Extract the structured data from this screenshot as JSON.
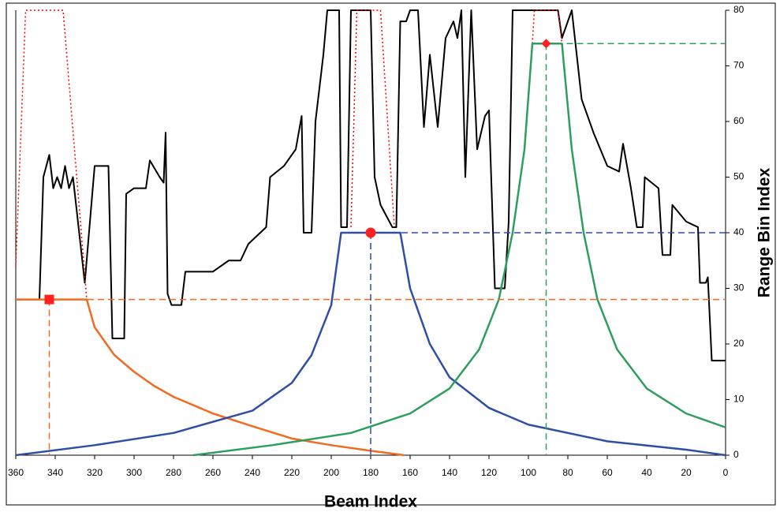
{
  "chart_data": {
    "type": "line",
    "xlabel": "Beam Index",
    "ylabel": "Range Bin Index",
    "xlim": [
      360,
      0
    ],
    "xticks": [
      360,
      340,
      320,
      300,
      280,
      260,
      240,
      220,
      200,
      180,
      160,
      140,
      120,
      100,
      80,
      60,
      40,
      20,
      0
    ],
    "ylim": [
      0,
      80
    ],
    "yticks": [
      0,
      10,
      20,
      30,
      40,
      50,
      60,
      70,
      80
    ],
    "series": [
      {
        "color": "#000000",
        "line": "solid",
        "width": 2,
        "x": [
          360,
          348,
          346,
          343,
          341,
          339,
          337,
          335,
          333,
          331,
          325,
          320,
          313,
          311,
          305,
          304,
          300,
          294,
          292,
          287,
          285,
          284,
          283,
          281,
          276,
          274,
          260,
          252,
          246,
          242,
          236,
          233,
          231,
          224,
          218,
          215,
          214,
          210,
          208,
          206,
          204,
          202,
          196,
          195,
          192,
          190,
          180,
          178,
          175,
          172,
          169,
          167,
          165,
          162,
          160,
          156,
          153,
          150,
          146,
          142,
          138,
          136,
          134,
          132,
          129,
          126,
          122,
          120,
          117,
          112,
          110,
          108,
          85,
          83,
          78,
          73,
          67,
          60,
          54,
          52,
          48,
          45,
          42,
          41,
          34,
          32,
          28,
          27,
          20,
          14,
          13,
          10,
          9,
          7,
          0
        ],
        "values": [
          28,
          28,
          50,
          54,
          48,
          50,
          48,
          52,
          48,
          50,
          31,
          52,
          52,
          21,
          21,
          47,
          48,
          48,
          53,
          50,
          49,
          58,
          29,
          27,
          27,
          33,
          33,
          35,
          35,
          38,
          40,
          41,
          50,
          52,
          55,
          61,
          40,
          40,
          60,
          66,
          72,
          80,
          80,
          41,
          41,
          80,
          80,
          50,
          45,
          43,
          41,
          41,
          78,
          78,
          80,
          80,
          59,
          72,
          59,
          75,
          78,
          75,
          80,
          50,
          80,
          55,
          61,
          62,
          30,
          30,
          42,
          80,
          80,
          75,
          80,
          64,
          58,
          52,
          51,
          56,
          48,
          41,
          41,
          50,
          48,
          36,
          36,
          45,
          42,
          41,
          31,
          31,
          32,
          17,
          17
        ]
      },
      {
        "color": "#ff0000",
        "line": "dotted",
        "width": 1.5,
        "x": [
          360,
          355,
          336,
          324
        ],
        "values": [
          34,
          80,
          80,
          28
        ]
      },
      {
        "color": "#ff0000",
        "line": "dotted",
        "width": 1.5,
        "x": [
          190,
          187,
          175,
          168
        ],
        "values": [
          41,
          80,
          80,
          41
        ]
      },
      {
        "color": "#ff0000",
        "line": "dotted",
        "width": 1.5,
        "x": [
          98,
          97,
          85,
          83
        ],
        "values": [
          74,
          80,
          80,
          74
        ]
      },
      {
        "color": "#f26b21",
        "line": "solid",
        "width": 2.5,
        "x": [
          360,
          324,
          320,
          310,
          300,
          290,
          280,
          260,
          240,
          220,
          200,
          180,
          163
        ],
        "values": [
          28,
          28,
          23,
          18,
          15,
          12.5,
          10.5,
          7.5,
          5.2,
          3,
          1.8,
          0.8,
          0
        ]
      },
      {
        "color": "#2f4fa5",
        "line": "solid",
        "width": 2.5,
        "x": [
          360,
          320,
          280,
          240,
          220,
          210,
          200,
          195,
          165,
          160,
          150,
          140,
          120,
          100,
          60,
          20,
          0
        ],
        "values": [
          0,
          1.8,
          4,
          8,
          13,
          18,
          27,
          40,
          40,
          30,
          20,
          14,
          8.5,
          5.5,
          2.5,
          1,
          0
        ]
      },
      {
        "color": "#2e9e5e",
        "line": "solid",
        "width": 2.5,
        "x": [
          270,
          230,
          190,
          160,
          140,
          125,
          115,
          108,
          102,
          98,
          83,
          78,
          72,
          65,
          55,
          40,
          20,
          0
        ],
        "values": [
          0,
          1.8,
          4,
          7.5,
          12,
          19,
          28,
          40,
          55,
          74,
          74,
          55,
          40,
          28,
          19,
          12,
          7.5,
          5
        ]
      },
      {
        "color": "#f26b21",
        "line": "dashed",
        "width": 1.5,
        "x": [
          360,
          0
        ],
        "values": [
          28,
          28
        ]
      },
      {
        "color": "#f26b21",
        "line": "dashed",
        "width": 1.5,
        "x": [
          343,
          343
        ],
        "values": [
          28,
          0
        ]
      },
      {
        "color": "#2f4fa5",
        "line": "dashed",
        "width": 1.5,
        "x": [
          180,
          0
        ],
        "values": [
          40,
          40
        ]
      },
      {
        "color": "#2f4fa5",
        "line": "dashed",
        "width": 1.5,
        "x": [
          180,
          180
        ],
        "values": [
          40,
          0
        ]
      },
      {
        "color": "#2e9e5e",
        "line": "dashed",
        "width": 1.5,
        "x": [
          91,
          0
        ],
        "values": [
          74,
          74
        ]
      },
      {
        "color": "#2e9e5e",
        "line": "dashed",
        "width": 1.5,
        "x": [
          91,
          91
        ],
        "values": [
          74,
          0
        ]
      },
      {
        "color": "#ff2020",
        "marker": "square",
        "x": [
          343
        ],
        "values": [
          28
        ]
      },
      {
        "color": "#ff2020",
        "marker": "circle",
        "x": [
          180
        ],
        "values": [
          40
        ]
      },
      {
        "color": "#ff2020",
        "marker": "diamond",
        "x": [
          91
        ],
        "values": [
          74
        ]
      }
    ]
  }
}
